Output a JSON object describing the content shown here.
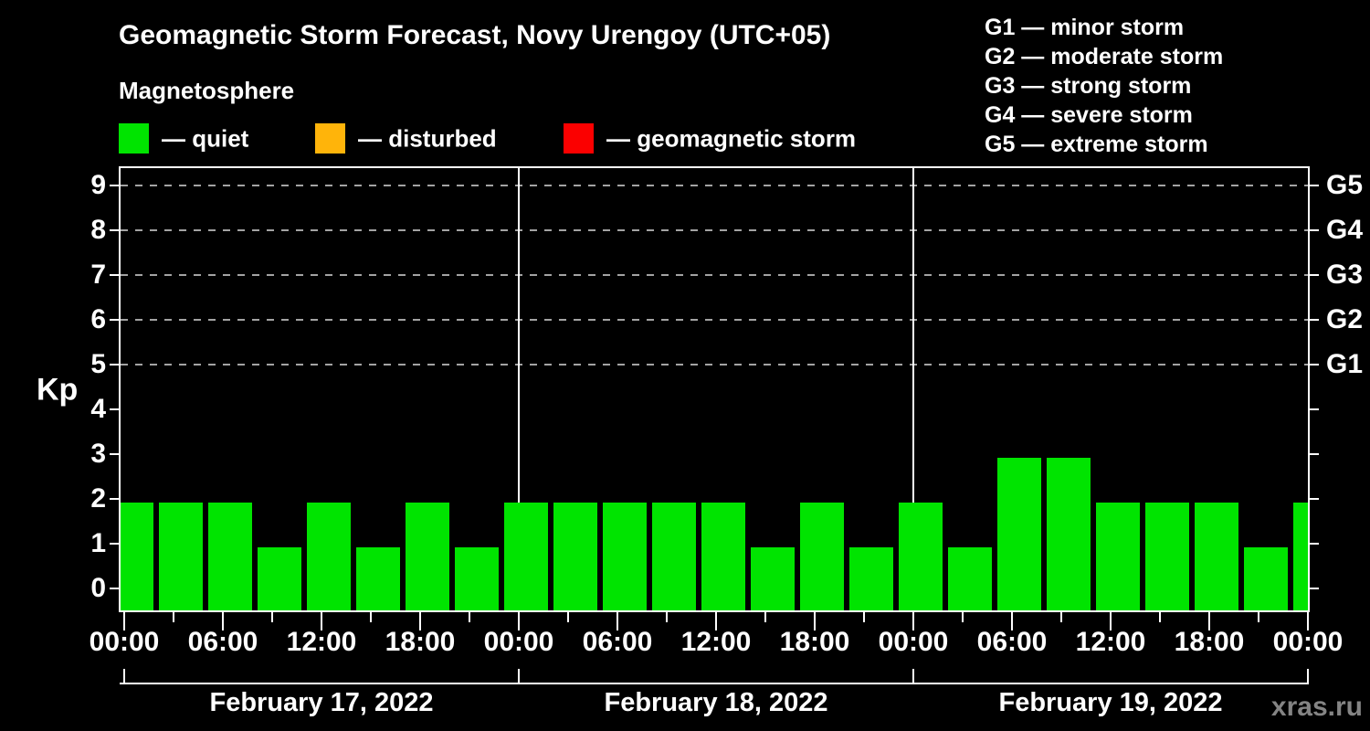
{
  "title": "Geomagnetic Storm Forecast, Novy Urengoy (UTC+05)",
  "subtitle": "Magnetosphere",
  "watermark": "xras.ru",
  "condition_legend": {
    "items": [
      {
        "key": "quiet",
        "label": "— quiet",
        "color": "#00e400"
      },
      {
        "key": "disturbed",
        "label": "— disturbed",
        "color": "#ffb40a"
      },
      {
        "key": "storm",
        "label": "— geomagnetic storm",
        "color": "#fb0000"
      }
    ]
  },
  "g_legend": {
    "items": [
      "G1 — minor storm",
      "G2 — moderate storm",
      "G3 — strong storm",
      "G4 — severe storm",
      "G5 — extreme storm"
    ]
  },
  "chart_data": {
    "type": "bar",
    "title": "Geomagnetic Storm Forecast, Novy Urengoy (UTC+05)",
    "ylabel": "Kp",
    "xlabel": "",
    "ylim": [
      -0.5,
      9.4
    ],
    "yticks": [
      0,
      1,
      2,
      3,
      4,
      5,
      6,
      7,
      8,
      9
    ],
    "grid_on": true,
    "grid_kp_levels": [
      5,
      6,
      7,
      8,
      9
    ],
    "right_axis_labels": [
      {
        "label": "G1",
        "kp": 5
      },
      {
        "label": "G2",
        "kp": 6
      },
      {
        "label": "G3",
        "kp": 7
      },
      {
        "label": "G4",
        "kp": 8
      },
      {
        "label": "G5",
        "kp": 9
      }
    ],
    "hours_per_bar": 3,
    "x_time_labels": [
      "00:00",
      "06:00",
      "12:00",
      "18:00",
      "00:00",
      "06:00",
      "12:00",
      "18:00",
      "00:00",
      "06:00",
      "12:00",
      "18:00",
      "00:00"
    ],
    "days": [
      {
        "date": "February 17, 2022",
        "values": [
          2,
          2,
          2,
          1,
          2,
          1,
          2,
          1
        ]
      },
      {
        "date": "February 18, 2022",
        "values": [
          2,
          2,
          2,
          2,
          2,
          1,
          2,
          1
        ]
      },
      {
        "date": "February 19, 2022",
        "values": [
          2,
          1,
          3,
          3,
          2,
          2,
          2,
          1
        ]
      }
    ],
    "clipped_next_value": 2,
    "color_rules": {
      "quiet_below": 4,
      "disturbed_below": 5
    },
    "legend_position": "top"
  }
}
